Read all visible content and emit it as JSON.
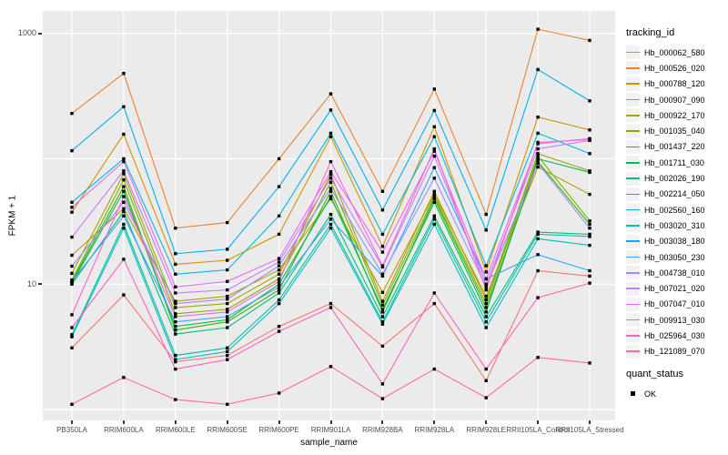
{
  "chart_data": {
    "type": "line",
    "x_axis_label": "sample_name",
    "y_axis_label": "FPKM + 1",
    "y_scale": "log10",
    "legend_title": "tracking_id",
    "legend_position": "right",
    "grid": "major-white-on-gray",
    "y_ticks": [
      {
        "value": 1000,
        "label": "1000"
      },
      {
        "value": 10,
        "label": "10"
      }
    ],
    "y_gridline_values": [
      1,
      10,
      100,
      1000
    ],
    "ylim": [
      1,
      1300
    ],
    "categories": [
      "PB350LA",
      "RRIM600LA",
      "RRIM600LE",
      "RRIM600SE",
      "RRIM600PE",
      "RRIM901LA",
      "RRIM928BA",
      "RRIM928LA",
      "RRIM928LE",
      "RRII105LA_Control",
      "RRII105LA_Stressed"
    ],
    "point_color": "#000000",
    "point_shape": "filled-square",
    "series": [
      {
        "name": "Hb_000062_580",
        "color": "#F8766D",
        "values": [
          3.1,
          8.2,
          2.4,
          2.7,
          4.6,
          7,
          3.2,
          7,
          1.7,
          12.8,
          11.6
        ]
      },
      {
        "name": "Hb_000526_020",
        "color": "#EA8331",
        "values": [
          230,
          480,
          28,
          31,
          100,
          330,
          55,
          360,
          36,
          1080,
          880
        ]
      },
      {
        "name": "Hb_000788_120",
        "color": "#D89000",
        "values": [
          37.5,
          157,
          14.4,
          15.5,
          25,
          150,
          20,
          180,
          12.5,
          215,
          170
        ]
      },
      {
        "name": "Hb_000907_090",
        "color": "#C09B00",
        "values": [
          17,
          40,
          7.3,
          8,
          13,
          48,
          8.6,
          52,
          8,
          86,
          52
        ]
      },
      {
        "name": "Hb_000922_170",
        "color": "#A3A500",
        "values": [
          12.2,
          76,
          6.5,
          7,
          12,
          75,
          7.3,
          55,
          7.5,
          110,
          80
        ]
      },
      {
        "name": "Hb_001035_040",
        "color": "#7CAE00",
        "values": [
          10.8,
          68,
          5.8,
          6.3,
          11,
          65,
          6.8,
          50,
          7,
          105,
          32
        ]
      },
      {
        "name": "Hb_001437_220",
        "color": "#39B600",
        "values": [
          10.5,
          60,
          4.3,
          5,
          9,
          55,
          6,
          48,
          6.5,
          95,
          30
        ]
      },
      {
        "name": "Hb_001711_030",
        "color": "#00BB4E",
        "values": [
          10.2,
          55,
          4.6,
          5.2,
          10,
          50,
          6.3,
          45,
          6,
          100,
          78
        ]
      },
      {
        "name": "Hb_002026_190",
        "color": "#00BF7D",
        "values": [
          10,
          38,
          4,
          4.5,
          8.5,
          36,
          5.5,
          35,
          5.5,
          26,
          25
        ]
      },
      {
        "name": "Hb_002214_050",
        "color": "#00C1A3",
        "values": [
          3.95,
          30,
          2.7,
          3.1,
          7.5,
          30,
          5,
          33,
          5,
          25,
          24
        ]
      },
      {
        "name": "Hb_002560_160",
        "color": "#00BFC4",
        "values": [
          3.8,
          28,
          2.5,
          2.9,
          7,
          28,
          4.8,
          30,
          4.5,
          23,
          20.4
        ]
      },
      {
        "name": "Hb_003020_310",
        "color": "#00BAE0",
        "values": [
          45,
          100,
          12,
          13,
          35,
          160,
          25,
          150,
          14,
          160,
          110
        ]
      },
      {
        "name": "Hb_003038_180",
        "color": "#00B0F6",
        "values": [
          116,
          260,
          17.5,
          19,
          60,
          245,
          39,
          243,
          27,
          515,
          290
        ]
      },
      {
        "name": "Hb_003050_230",
        "color": "#35A2FF",
        "values": [
          10.5,
          35,
          5,
          5.5,
          9.5,
          33,
          11.6,
          85,
          11,
          17.2,
          12.8
        ]
      },
      {
        "name": "Hb_004738_010",
        "color": "#9590FF",
        "values": [
          13.9,
          45,
          7,
          7.6,
          14,
          58,
          12,
          70,
          9.5,
          92,
          28
        ]
      },
      {
        "name": "Hb_007021_020",
        "color": "#C77CFF",
        "values": [
          23.7,
          80,
          8.5,
          9,
          15,
          70,
          13.7,
          105,
          10,
          120,
          140
        ]
      },
      {
        "name": "Hb_007047_010",
        "color": "#E76BF3",
        "values": [
          41,
          95,
          9.5,
          10.5,
          16,
          79,
          18,
          115,
          11,
          132,
          145
        ]
      },
      {
        "name": "Hb_009913_030",
        "color": "#FA62DB",
        "values": [
          5.7,
          50,
          5.5,
          6,
          10.5,
          95,
          14,
          120,
          9,
          135,
          142
        ]
      },
      {
        "name": "Hb_025964_030",
        "color": "#FF62BC",
        "values": [
          4.5,
          15.8,
          2.1,
          2.5,
          4.2,
          6.5,
          1.6,
          8.5,
          2.1,
          7.8,
          10.2
        ]
      },
      {
        "name": "Hb_121089_070",
        "color": "#FF6A98",
        "values": [
          1.1,
          1.8,
          1.2,
          1.1,
          1.35,
          2.2,
          1.22,
          2.1,
          1.24,
          2.6,
          2.35
        ]
      }
    ],
    "quant_status": {
      "title": "quant_status",
      "items": [
        "OK"
      ]
    },
    "colors": {
      "panel_bg": "#EBEBEB",
      "gridline": "#FFFFFF",
      "axis_text": "#4D4D4D",
      "legend_key_bg": "#F2F2F2"
    }
  }
}
